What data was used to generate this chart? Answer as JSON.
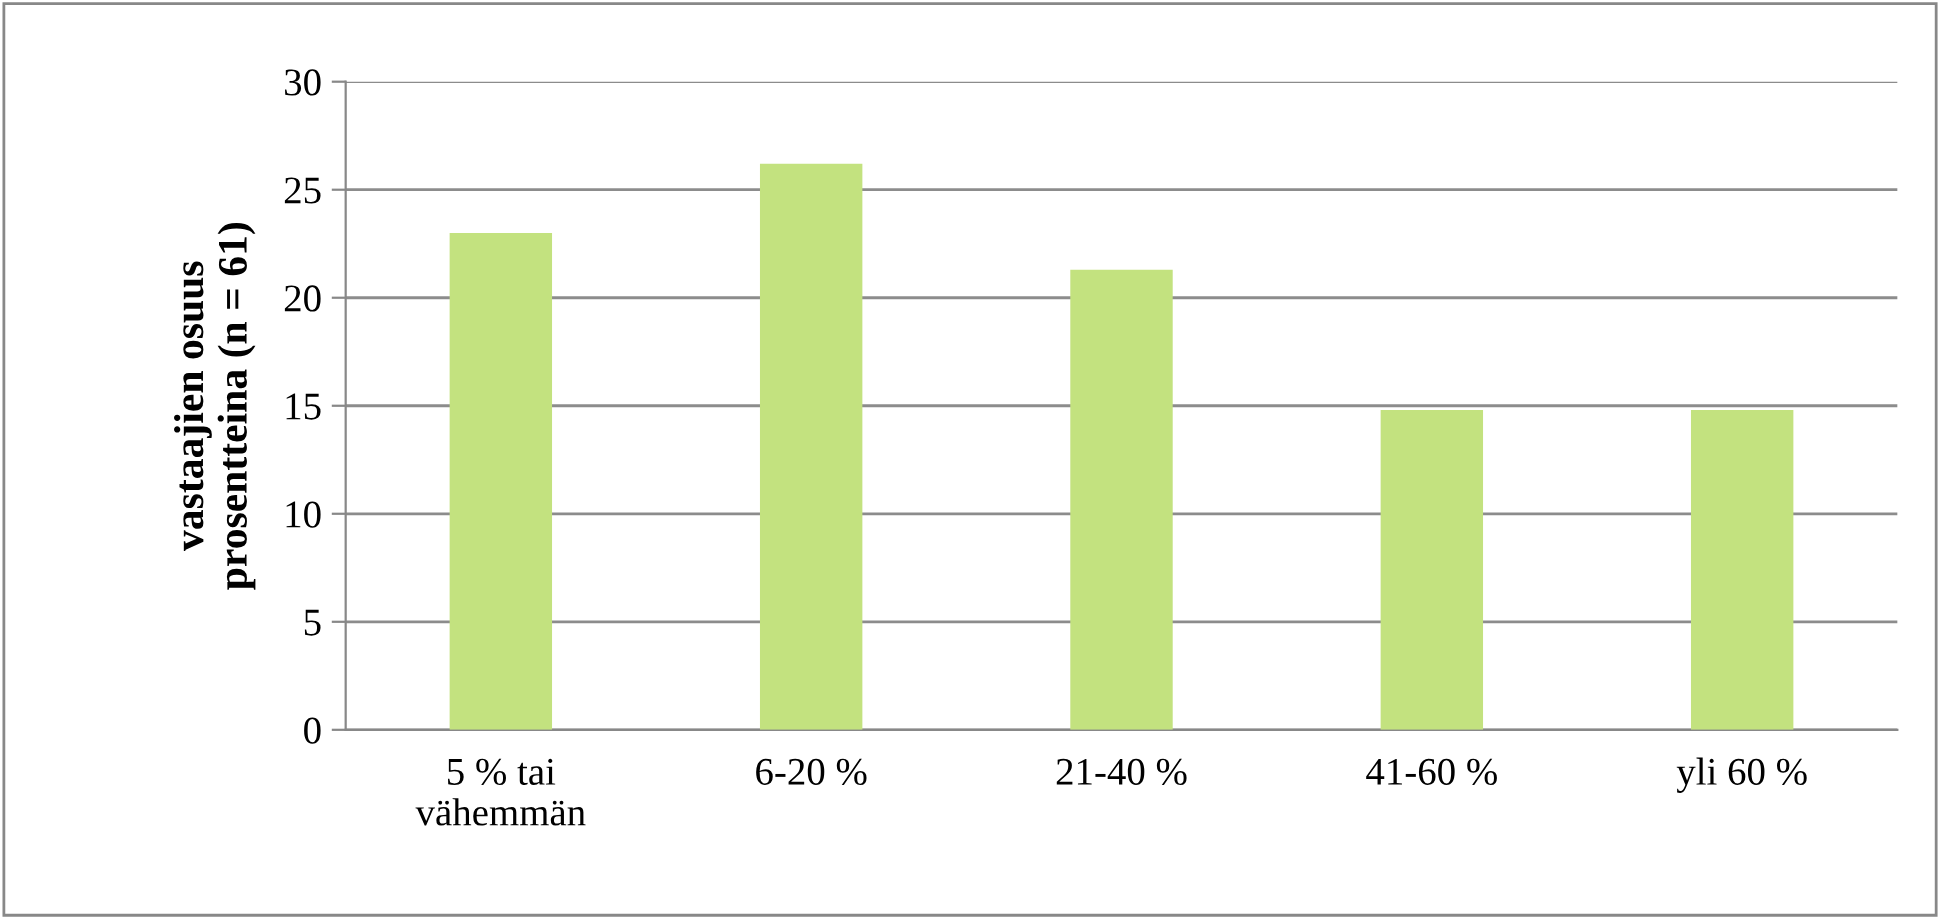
{
  "chart_data": {
    "type": "bar",
    "ylabel": "vastaajien osuus\nprosentteina (n = 61)",
    "categories": [
      "5 % tai\nvähemmän",
      "6-20 %",
      "21-40 %",
      "41-60 %",
      "yli 60 %"
    ],
    "values": [
      23.0,
      26.2,
      21.3,
      14.8,
      14.8
    ],
    "color": "#c3e27f",
    "ylim": [
      0,
      30
    ],
    "yticks": [
      0,
      5,
      10,
      15,
      20,
      25,
      30
    ],
    "grid": "y",
    "legend": false
  }
}
